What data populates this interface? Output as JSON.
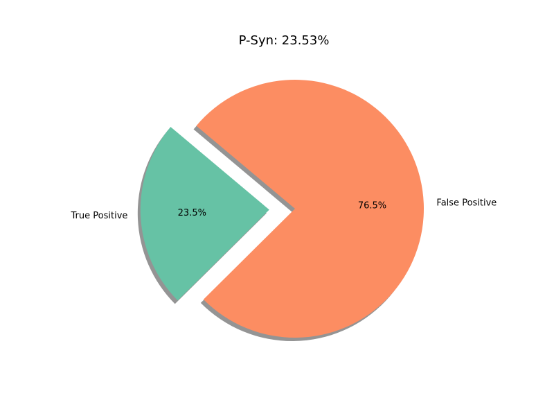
{
  "chart_data": {
    "type": "pie",
    "title": "P-Syn: 23.53%",
    "slices": [
      {
        "label": "True Positive",
        "value": 23.53,
        "pct_label": "23.5%",
        "color": "#66c2a5",
        "exploded": true
      },
      {
        "label": "False Positive",
        "value": 76.47,
        "pct_label": "76.5%",
        "color": "#fc8d62",
        "exploded": false
      }
    ],
    "shadow": true,
    "start_angle_deg": 140,
    "counterclockwise": true
  }
}
